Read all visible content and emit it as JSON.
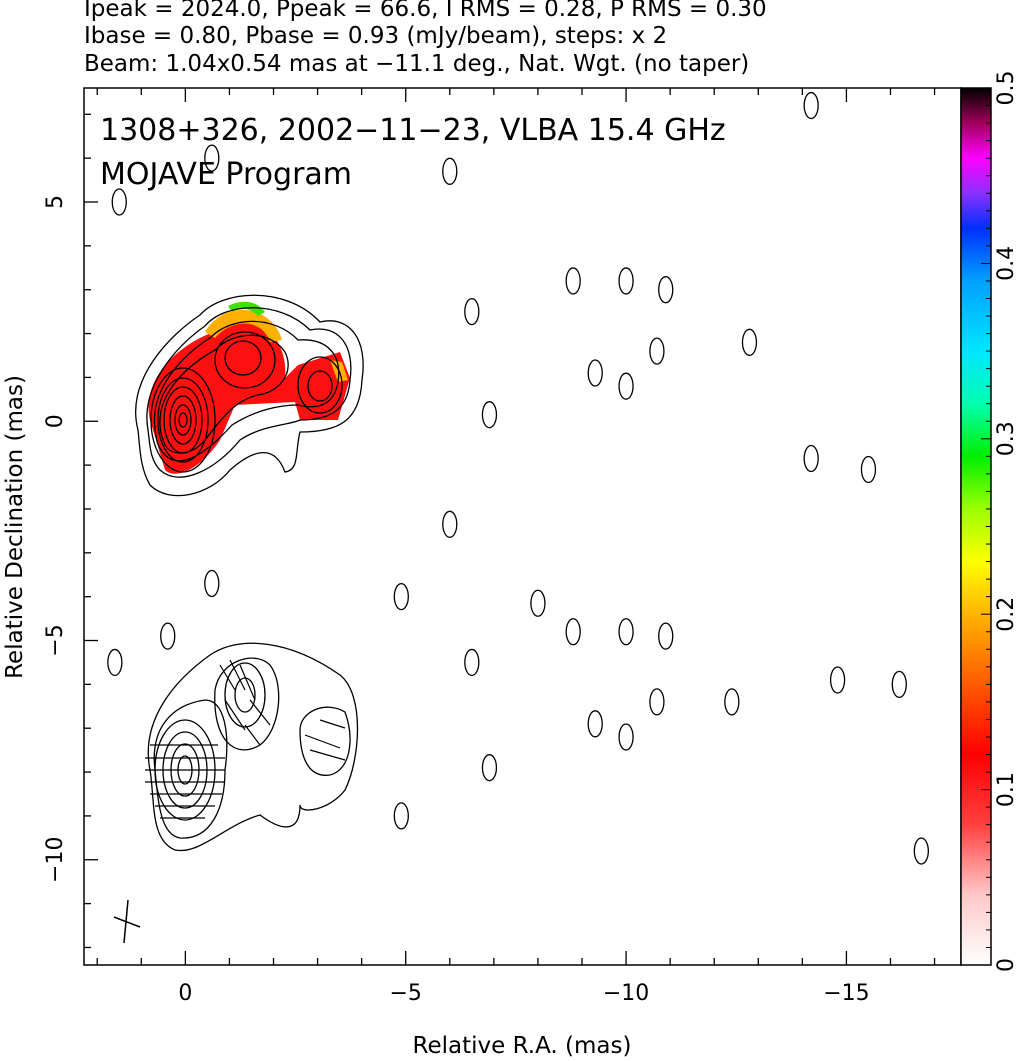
{
  "header": {
    "line1": "Ipeak = 2024.0, Ppeak = 66.6, I RMS = 0.28, P RMS = 0.30",
    "line2": "Ibase = 0.80, Pbase = 0.93 (mJy/beam), steps: x 2",
    "line3": "Beam: 1.04x0.54 mas at −11.1 deg., Nat. Wgt. (no taper)"
  },
  "chart_data": {
    "type": "contour map",
    "title": "1308+326, 2002−11−23, VLBA 15.4 GHz",
    "subtitle": "MOJAVE Program",
    "xlabel": "Relative R.A. (mas)",
    "ylabel": "Relative Declination (mas)",
    "xlim": [
      2.3,
      -17.6
    ],
    "ylim": [
      -12.4,
      7.6
    ],
    "x_reversed": true,
    "x_ticks": [
      {
        "value": 0,
        "label": "0"
      },
      {
        "value": -5,
        "label": "−5"
      },
      {
        "value": -10,
        "label": "−10"
      },
      {
        "value": -15,
        "label": "−15"
      }
    ],
    "y_ticks": [
      {
        "value": 5,
        "label": "5"
      },
      {
        "value": 0,
        "label": "0"
      },
      {
        "value": -5,
        "label": "−5"
      },
      {
        "value": -10,
        "label": "−10"
      }
    ],
    "colorbar": {
      "range": [
        0,
        0.5
      ],
      "ticks": [
        {
          "value": 0,
          "label": "0"
        },
        {
          "value": 0.1,
          "label": "0.1"
        },
        {
          "value": 0.2,
          "label": "0.2"
        },
        {
          "value": 0.3,
          "label": "0.3"
        },
        {
          "value": 0.4,
          "label": "0.4"
        },
        {
          "value": 0.5,
          "label": "0.5"
        }
      ]
    },
    "upper_panel": {
      "core": [
        0.0,
        0.1
      ],
      "components": [
        {
          "x": -1.3,
          "y": 1.4
        },
        {
          "x": -3.1,
          "y": 0.7
        }
      ]
    },
    "lower_panel_offset_dec": -8.0,
    "beam": {
      "major_mas": 1.04,
      "minor_mas": 0.54,
      "pa_deg": -11.1,
      "x": 1.3,
      "y": -11.3
    },
    "noise_blobs": [
      {
        "x": -6.0,
        "y": 5.7
      },
      {
        "x": -6.5,
        "y": 2.5
      },
      {
        "x": -8.8,
        "y": 3.2
      },
      {
        "x": -10.0,
        "y": 3.2
      },
      {
        "x": -10.9,
        "y": 3.0
      },
      {
        "x": -9.3,
        "y": 1.1
      },
      {
        "x": -10.0,
        "y": 0.8
      },
      {
        "x": -10.7,
        "y": 1.6
      },
      {
        "x": -6.9,
        "y": 0.15
      },
      {
        "x": -6.0,
        "y": -2.35
      },
      {
        "x": -12.8,
        "y": 1.8
      },
      {
        "x": -15.5,
        "y": -1.1
      },
      {
        "x": -14.2,
        "y": -0.85
      },
      {
        "x": -14.2,
        "y": 7.2
      },
      {
        "x": -0.6,
        "y": 6.0
      },
      {
        "x": 1.5,
        "y": 5.0
      },
      {
        "x": -4.9,
        "y": -4.0
      },
      {
        "x": -8.0,
        "y": -4.15
      },
      {
        "x": -0.6,
        "y": -3.7
      },
      {
        "x": 0.4,
        "y": -4.9
      },
      {
        "x": 1.6,
        "y": -5.5
      },
      {
        "x": -6.5,
        "y": -5.5
      },
      {
        "x": -8.8,
        "y": -4.8
      },
      {
        "x": -10.0,
        "y": -4.8
      },
      {
        "x": -10.9,
        "y": -4.9
      },
      {
        "x": -9.3,
        "y": -6.9
      },
      {
        "x": -10.0,
        "y": -7.2
      },
      {
        "x": -10.7,
        "y": -6.4
      },
      {
        "x": -6.9,
        "y": -7.9
      },
      {
        "x": -4.9,
        "y": -9.0
      },
      {
        "x": -12.4,
        "y": -6.4
      },
      {
        "x": -14.8,
        "y": -5.9
      },
      {
        "x": -16.2,
        "y": -6.0
      },
      {
        "x": -16.7,
        "y": -9.8
      }
    ]
  }
}
